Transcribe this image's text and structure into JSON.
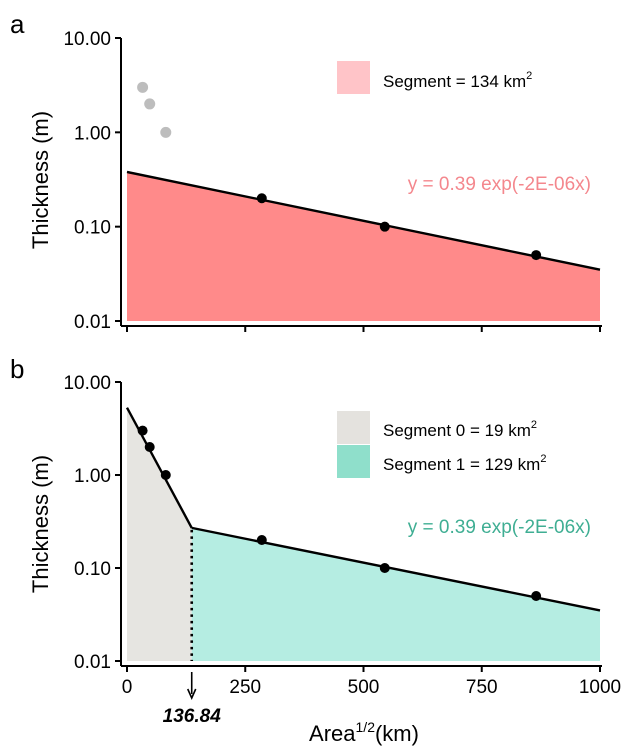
{
  "chart_data": [
    {
      "panel_label": "a",
      "type": "area",
      "xlim": [
        0,
        1000
      ],
      "ylim": [
        0.01,
        10
      ],
      "y_scale": "log",
      "ylabel": "Thickness (m)",
      "y_ticks": [
        "10.00",
        "1.00",
        "0.10",
        "0.01"
      ],
      "y_tick_values": [
        10,
        1,
        0.1,
        0.01
      ],
      "grid": false,
      "legend_position": "top-right",
      "legend": [
        {
          "label": "Segment = 134 km",
          "sup": "2",
          "color": "#ffc4c8"
        }
      ],
      "equation": "y = 0.39 exp(-2E-06x)",
      "equation_color": "#f4878d",
      "fit_line": [
        [
          0,
          0.38
        ],
        [
          1000,
          0.035
        ]
      ],
      "fill": {
        "color": "#ff8a8a",
        "from_x": 0,
        "to_x": 1000
      },
      "points_fitted": [
        [
          285,
          0.2
        ],
        [
          545,
          0.1
        ],
        [
          865,
          0.05
        ]
      ],
      "points_excluded": [
        [
          33,
          3
        ],
        [
          48,
          2
        ],
        [
          82,
          1
        ]
      ],
      "excluded_color": "#bdbdbd"
    },
    {
      "panel_label": "b",
      "type": "area",
      "xlim": [
        0,
        1000
      ],
      "ylim": [
        0.01,
        10
      ],
      "y_scale": "log",
      "ylabel": "Thickness (m)",
      "xlabel": "Area",
      "xlabel_sup": "1/2",
      "xlabel_unit": "(km)",
      "x_ticks": [
        "0",
        "250",
        "500",
        "750",
        "1000"
      ],
      "x_tick_values": [
        0,
        250,
        500,
        750,
        1000
      ],
      "y_ticks": [
        "10.00",
        "1.00",
        "0.10",
        "0.01"
      ],
      "y_tick_values": [
        10,
        1,
        0.1,
        0.01
      ],
      "grid": false,
      "legend_position": "top-right",
      "legend": [
        {
          "label": "Segment 0 = 19 km",
          "sup": "2",
          "color": "#e4e2de"
        },
        {
          "label": "Segment 1 = 129 km",
          "sup": "2",
          "color": "#8fdfcb"
        }
      ],
      "equation": "y = 0.39 exp(-2E-06x)",
      "equation_color": "#3fae93",
      "breakpoint": 136.84,
      "breakpoint_label": "136.84",
      "fit_line_segment0": [
        [
          0,
          5.3
        ],
        [
          136.84,
          0.27
        ]
      ],
      "fit_line_segment1": [
        [
          136.84,
          0.27
        ],
        [
          1000,
          0.035
        ]
      ],
      "fill_segment0": {
        "color": "#e6e5e1",
        "from_x": 0,
        "to_x": 136.84
      },
      "fill_segment1": {
        "color": "#b5ede2",
        "from_x": 136.84,
        "to_x": 1000
      },
      "points": [
        [
          33,
          3
        ],
        [
          48,
          2
        ],
        [
          82,
          1
        ],
        [
          285,
          0.2
        ],
        [
          545,
          0.1
        ],
        [
          865,
          0.05
        ]
      ]
    }
  ]
}
